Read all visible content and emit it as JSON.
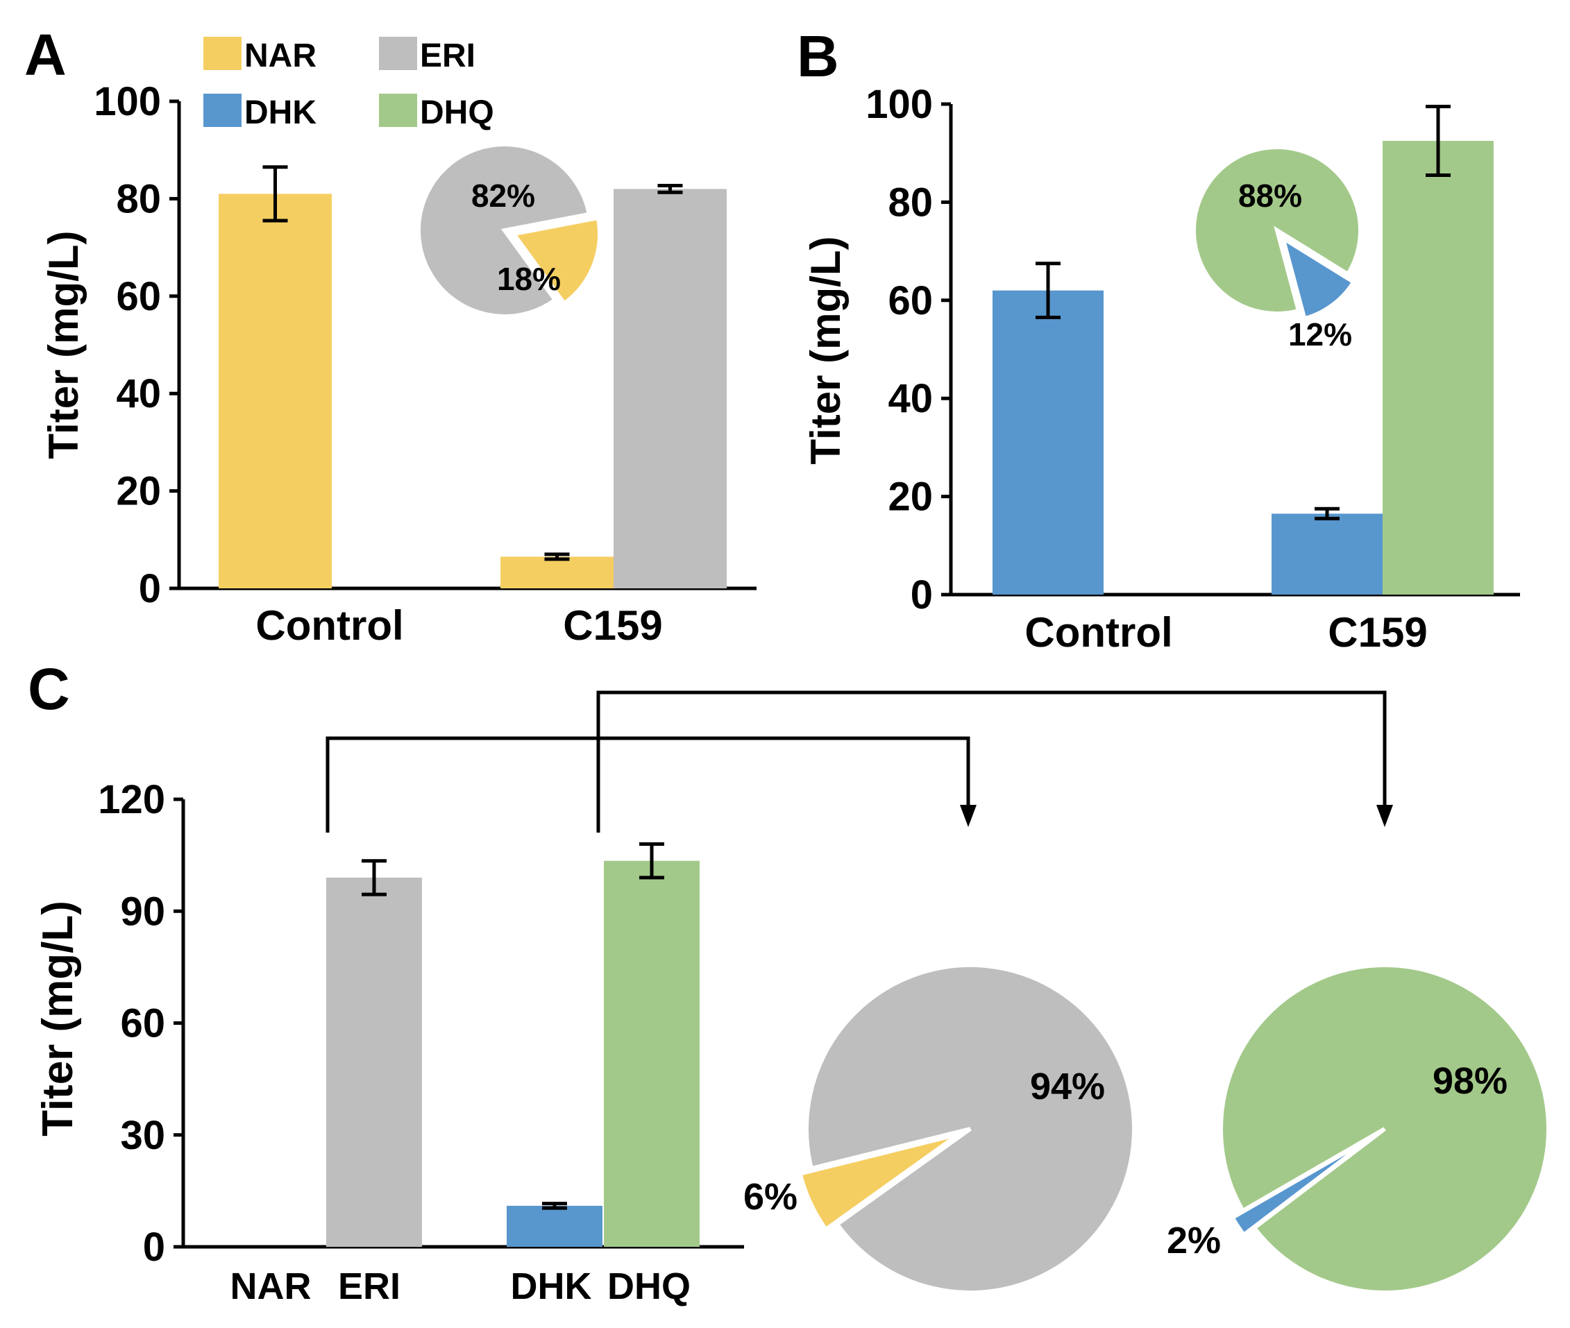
{
  "colors": {
    "NAR": "#F5CE62",
    "ERI": "#BEBEBE",
    "DHK": "#5896CE",
    "DHQ": "#A3C98A",
    "axis": "#000000"
  },
  "chart_data": [
    {
      "panel": "A",
      "type": "bar",
      "ylabel": "Titer (mg/L)",
      "ylim": [
        0,
        100
      ],
      "yticks": [
        0,
        20,
        40,
        60,
        80,
        100
      ],
      "categories": [
        "Control",
        "C159"
      ],
      "legend": {
        "placement": "top-left",
        "entries": [
          {
            "name": "NAR",
            "color_key": "NAR"
          },
          {
            "name": "ERI",
            "color_key": "ERI"
          },
          {
            "name": "DHK",
            "color_key": "DHK"
          },
          {
            "name": "DHQ",
            "color_key": "DHQ"
          }
        ]
      },
      "series": [
        {
          "name": "NAR",
          "color_key": "NAR",
          "values": [
            81,
            6.5
          ],
          "errors": [
            5.5,
            0.5
          ]
        },
        {
          "name": "ERI",
          "color_key": "ERI",
          "values": [
            null,
            82
          ],
          "errors": [
            null,
            0.7
          ]
        }
      ],
      "inset_pie": {
        "slices": [
          {
            "name": "ERI",
            "value": 82,
            "label": "82%",
            "color_key": "ERI"
          },
          {
            "name": "NAR",
            "value": 18,
            "label": "18%",
            "color_key": "NAR",
            "exploded": true
          }
        ]
      }
    },
    {
      "panel": "B",
      "type": "bar",
      "ylabel": "Titer (mg/L)",
      "ylim": [
        0,
        100
      ],
      "yticks": [
        0,
        20,
        40,
        60,
        80,
        100
      ],
      "categories": [
        "Control",
        "C159"
      ],
      "series": [
        {
          "name": "DHK",
          "color_key": "DHK",
          "values": [
            62,
            16.5
          ],
          "errors": [
            5.5,
            1
          ]
        },
        {
          "name": "DHQ",
          "color_key": "DHQ",
          "values": [
            null,
            92.5
          ],
          "errors": [
            null,
            7
          ]
        }
      ],
      "inset_pie": {
        "slices": [
          {
            "name": "DHQ",
            "value": 88,
            "label": "88%",
            "color_key": "DHQ"
          },
          {
            "name": "DHK",
            "value": 12,
            "label": "12%",
            "color_key": "DHK",
            "exploded": true
          }
        ]
      }
    },
    {
      "panel": "C",
      "type": "bar",
      "ylabel": "Titer (mg/L)",
      "ylim": [
        0,
        120
      ],
      "yticks": [
        0,
        30,
        60,
        90,
        120
      ],
      "categories": [
        "NAR",
        "ERI",
        "DHK",
        "DHQ"
      ],
      "series": [
        {
          "name": "Titer",
          "color_keys": [
            "NAR",
            "ERI",
            "DHK",
            "DHQ"
          ],
          "values": [
            0,
            99,
            11,
            103.5
          ],
          "errors": [
            0,
            4.5,
            0.6,
            4.5
          ]
        }
      ],
      "pies": [
        {
          "source": "NAR/ERI",
          "slices": [
            {
              "name": "ERI",
              "value": 94,
              "label": "94%",
              "color_key": "ERI"
            },
            {
              "name": "NAR",
              "value": 6,
              "label": "6%",
              "color_key": "NAR",
              "exploded": true
            }
          ]
        },
        {
          "source": "DHK/DHQ",
          "slices": [
            {
              "name": "DHQ",
              "value": 98,
              "label": "98%",
              "color_key": "DHQ"
            },
            {
              "name": "DHK",
              "value": 2,
              "label": "2%",
              "color_key": "DHK",
              "exploded": true
            }
          ]
        }
      ]
    }
  ],
  "panel_labels": [
    "A",
    "B",
    "C"
  ]
}
